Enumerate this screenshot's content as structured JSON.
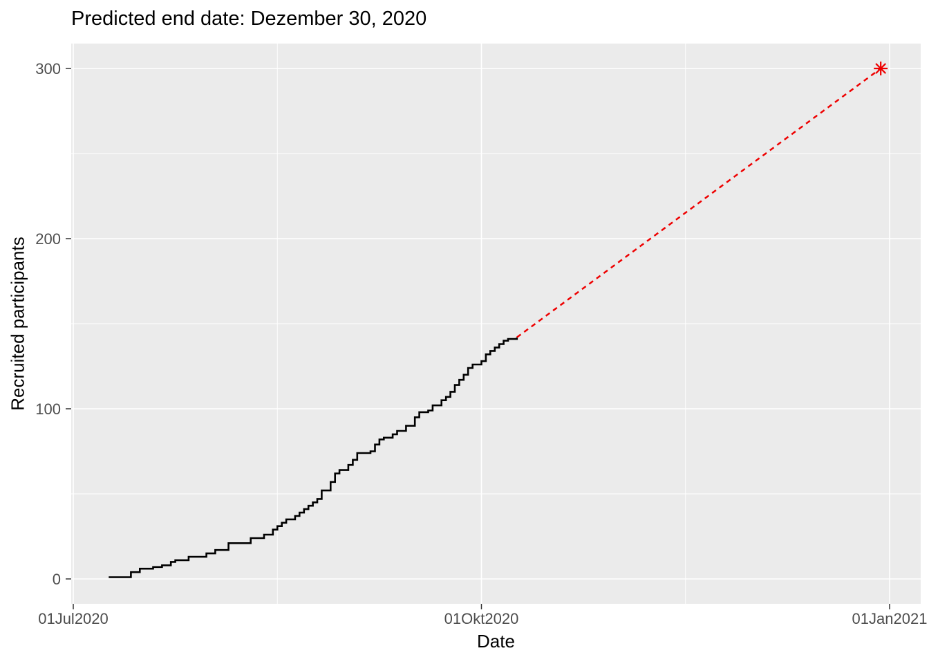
{
  "chart_data": {
    "type": "line",
    "subtype": "cumulative_step_with_dashed_projection",
    "title": "Predicted end date: Dezember 30, 2020",
    "xlabel": "Date",
    "ylabel": "Recruited participants",
    "x_axis_unit": "days_since_2020-07-01",
    "x_ticks": [
      {
        "day": 0,
        "label": "01Jul2020"
      },
      {
        "day": 92,
        "label": "01Okt2020"
      },
      {
        "day": 184,
        "label": "01Jan2021"
      }
    ],
    "x_minor_tick_days": [
      46,
      138
    ],
    "y_ticks": [
      0,
      100,
      200,
      300
    ],
    "y_minor_ticks": [
      50,
      150,
      250
    ],
    "ylim": [
      -15,
      315
    ],
    "xlim_days": [
      -0.5,
      191
    ],
    "grid": "white major and minor gridlines on gray panel",
    "legend": "none",
    "series": [
      {
        "name": "recruited-cumulative",
        "style": "step",
        "color": "#000000",
        "points": [
          [
            8,
            1
          ],
          [
            13,
            4
          ],
          [
            15,
            6
          ],
          [
            18,
            7
          ],
          [
            20,
            8
          ],
          [
            22,
            10
          ],
          [
            23,
            11
          ],
          [
            26,
            13
          ],
          [
            30,
            15
          ],
          [
            32,
            17
          ],
          [
            35,
            21
          ],
          [
            40,
            24
          ],
          [
            43,
            26
          ],
          [
            45,
            29
          ],
          [
            46,
            31
          ],
          [
            47,
            33
          ],
          [
            48,
            35
          ],
          [
            50,
            37
          ],
          [
            51,
            39
          ],
          [
            52,
            41
          ],
          [
            53,
            43
          ],
          [
            54,
            45
          ],
          [
            55,
            47
          ],
          [
            56,
            52
          ],
          [
            58,
            57
          ],
          [
            59,
            62
          ],
          [
            60,
            64
          ],
          [
            62,
            67
          ],
          [
            63,
            70
          ],
          [
            64,
            74
          ],
          [
            67,
            75
          ],
          [
            68,
            79
          ],
          [
            69,
            82
          ],
          [
            70,
            83
          ],
          [
            72,
            85
          ],
          [
            73,
            87
          ],
          [
            75,
            90
          ],
          [
            77,
            95
          ],
          [
            78,
            98
          ],
          [
            80,
            99
          ],
          [
            81,
            102
          ],
          [
            83,
            105
          ],
          [
            84,
            107
          ],
          [
            85,
            110
          ],
          [
            86,
            114
          ],
          [
            87,
            117
          ],
          [
            88,
            120
          ],
          [
            89,
            124
          ],
          [
            90,
            126
          ],
          [
            92,
            128
          ],
          [
            93,
            132
          ],
          [
            94,
            134
          ],
          [
            95,
            136
          ],
          [
            96,
            138
          ],
          [
            97,
            140
          ],
          [
            98,
            141
          ],
          [
            100,
            142
          ]
        ]
      },
      {
        "name": "prediction",
        "style": "dashed",
        "color": "#EE0000",
        "points": [
          [
            100,
            142
          ],
          [
            182,
            300
          ]
        ]
      }
    ],
    "end_marker": {
      "day": 182,
      "value": 300,
      "shape": "asterisk-8-ray",
      "color": "#EE0000"
    }
  },
  "colors": {
    "panel_background": "#EBEBEB",
    "gridline": "#FFFFFF",
    "tick_mark": "#333333",
    "tick_label": "#4D4D4D",
    "step_line": "#000000",
    "projection_line": "#EE0000",
    "title_text": "#000000"
  }
}
